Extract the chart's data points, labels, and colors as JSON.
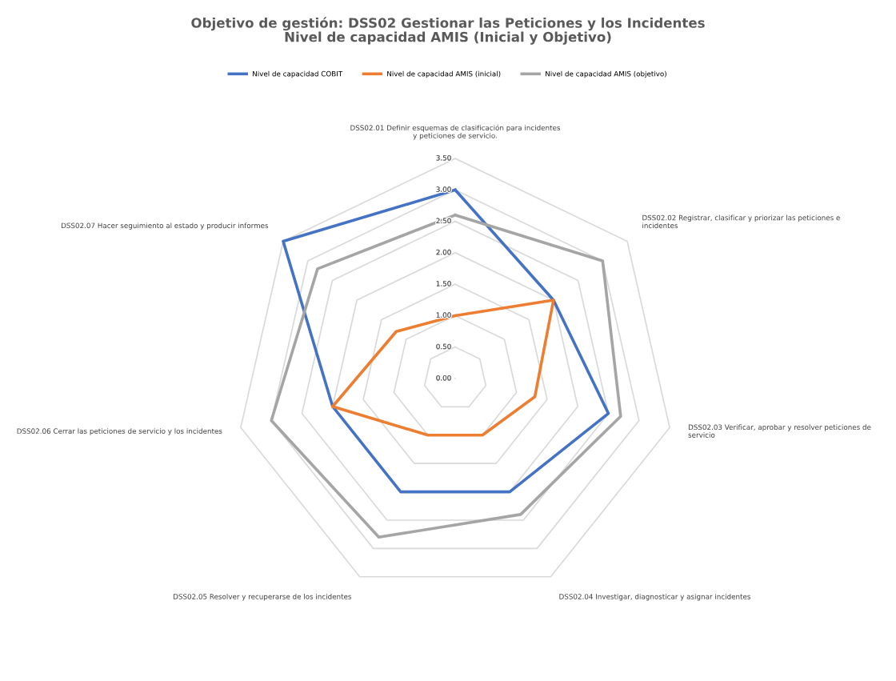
{
  "chart_data": {
    "type": "radar",
    "title": "Objetivo de gestión: DSS02 Gestionar las Peticiones y los Incidentes\nNivel de capacidad AMIS (Inicial y Objetivo)",
    "categories": [
      "DSS02.01 Definir esquemas de clasificación para incidentes\ny peticiones de servicio.",
      "DSS02.02 Registrar, clasificar y priorizar las peticiones e\nincidentes",
      "DSS02.03 Verificar, aprobar y resolver peticiones de\nservicio",
      "DSS02.04 Investigar, diagnosticar y asignar incidentes",
      "DSS02.05 Resolver y recuperarse de los incidentes",
      "DSS02.06 Cerrar las peticiones de servicio y los incidentes",
      "DSS02.07 Hacer seguimiento al estado y producir informes"
    ],
    "series": [
      {
        "name": "Nivel de capacidad COBIT",
        "color": "#4472c4",
        "values": [
          3.0,
          2.0,
          2.5,
          2.0,
          2.0,
          2.0,
          3.5
        ]
      },
      {
        "name": "Nivel de capacidad AMIS (inicial)",
        "color": "#ed7d31",
        "values": [
          1.0,
          2.0,
          1.3,
          1.0,
          1.0,
          2.0,
          1.2
        ]
      },
      {
        "name": "Nivel de capacidad AMIS (objetivo)",
        "color": "#a5a5a5",
        "values": [
          2.6,
          3.0,
          2.7,
          2.4,
          2.8,
          3.0,
          2.8
        ]
      }
    ],
    "ylim": [
      0,
      3.5
    ],
    "yticks": [
      {
        "value": 0,
        "label": "0.00"
      },
      {
        "value": 0.5,
        "label": "0.50"
      },
      {
        "value": 1,
        "label": "1.00"
      },
      {
        "value": 1.5,
        "label": "1.50"
      },
      {
        "value": 2,
        "label": "2.00"
      },
      {
        "value": 2.5,
        "label": "2.50"
      },
      {
        "value": 3,
        "label": "3.00"
      },
      {
        "value": 3.5,
        "label": "3.50"
      }
    ],
    "grid": true,
    "legend": "top"
  }
}
